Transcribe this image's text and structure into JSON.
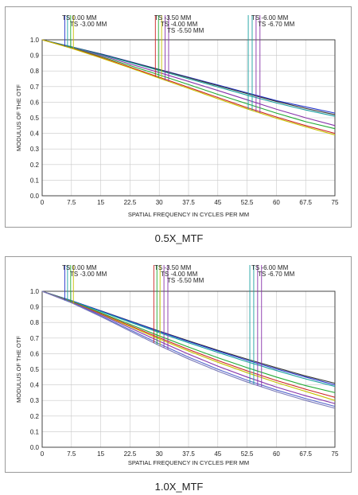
{
  "chart_data": [
    {
      "type": "line",
      "caption": "0.5X_MTF",
      "xlabel": "SPATIAL FREQUENCY IN CYCLES PER MM",
      "ylabel": "MODULUS OF THE OTF",
      "xlim": [
        0,
        75
      ],
      "ylim": [
        0,
        1
      ],
      "grid": true,
      "x_ticks": [
        "0",
        "7.5",
        "15",
        "22.5",
        "30",
        "37.5",
        "45",
        "52.5",
        "60",
        "67.5",
        "75"
      ],
      "y_ticks": [
        "0.0",
        "0.1",
        "0.2",
        "0.3",
        "0.4",
        "0.5",
        "0.6",
        "0.7",
        "0.8",
        "0.9",
        "1.0"
      ],
      "legend": [
        {
          "label": "TS 0.00 MM",
          "row": 0
        },
        {
          "label": "TS -3.00 MM",
          "row": 1
        },
        {
          "label": "TS -3.50 MM",
          "row": 0
        },
        {
          "label": "TS -4.00 MM",
          "row": 1
        },
        {
          "label": "TS -5.50 MM",
          "row": 2
        },
        {
          "label": "TS -6.00 MM",
          "row": 0
        },
        {
          "label": "TS -6.70 MM",
          "row": 1
        }
      ],
      "markers": [
        {
          "x": 5.8,
          "color": "#2233cc"
        },
        {
          "x": 6.5,
          "color": "#1aa0a0"
        },
        {
          "x": 7.3,
          "color": "#22aa33"
        },
        {
          "x": 8.0,
          "color": "#c8c000"
        },
        {
          "x": 29.0,
          "color": "#cc2222"
        },
        {
          "x": 29.8,
          "color": "#22aa33"
        },
        {
          "x": 30.6,
          "color": "#c8c000"
        },
        {
          "x": 31.5,
          "color": "#8833aa"
        },
        {
          "x": 32.4,
          "color": "#8833aa"
        },
        {
          "x": 52.8,
          "color": "#1aa0a0"
        },
        {
          "x": 53.8,
          "color": "#1aa0a0"
        },
        {
          "x": 54.8,
          "color": "#8833aa"
        },
        {
          "x": 55.8,
          "color": "#8833aa"
        }
      ],
      "series": [
        {
          "color": "#2233cc",
          "x": [
            0,
            7.5,
            15,
            22.5,
            30,
            37.5,
            45,
            52.5,
            60,
            67.5,
            75
          ],
          "y": [
            1.0,
            0.955,
            0.91,
            0.86,
            0.81,
            0.76,
            0.71,
            0.66,
            0.61,
            0.57,
            0.53
          ]
        },
        {
          "color": "#333333",
          "x": [
            0,
            7.5,
            15,
            22.5,
            30,
            37.5,
            45,
            52.5,
            60,
            67.5,
            75
          ],
          "y": [
            1.0,
            0.955,
            0.908,
            0.858,
            0.808,
            0.757,
            0.706,
            0.655,
            0.605,
            0.56,
            0.52
          ]
        },
        {
          "color": "#1aa0a0",
          "x": [
            0,
            7.5,
            15,
            22.5,
            30,
            37.5,
            45,
            52.5,
            60,
            67.5,
            75
          ],
          "y": [
            1.0,
            0.955,
            0.905,
            0.855,
            0.803,
            0.75,
            0.698,
            0.645,
            0.595,
            0.55,
            0.51
          ]
        },
        {
          "color": "#8833aa",
          "x": [
            0,
            7.5,
            15,
            22.5,
            30,
            37.5,
            45,
            52.5,
            60,
            67.5,
            75
          ],
          "y": [
            1.0,
            0.952,
            0.9,
            0.845,
            0.79,
            0.733,
            0.675,
            0.615,
            0.555,
            0.5,
            0.45
          ]
        },
        {
          "color": "#22aa33",
          "x": [
            0,
            7.5,
            15,
            22.5,
            30,
            37.5,
            45,
            52.5,
            60,
            67.5,
            75
          ],
          "y": [
            1.0,
            0.95,
            0.893,
            0.835,
            0.775,
            0.713,
            0.65,
            0.59,
            0.53,
            0.475,
            0.43
          ]
        },
        {
          "color": "#cc2222",
          "x": [
            0,
            7.5,
            15,
            22.5,
            30,
            37.5,
            45,
            52.5,
            60,
            67.5,
            75
          ],
          "y": [
            1.0,
            0.947,
            0.888,
            0.825,
            0.76,
            0.695,
            0.63,
            0.565,
            0.505,
            0.45,
            0.4
          ]
        },
        {
          "color": "#c8c000",
          "x": [
            0,
            7.5,
            15,
            22.5,
            30,
            37.5,
            45,
            52.5,
            60,
            67.5,
            75
          ],
          "y": [
            1.0,
            0.945,
            0.884,
            0.82,
            0.754,
            0.688,
            0.622,
            0.557,
            0.497,
            0.442,
            0.39
          ]
        }
      ]
    },
    {
      "type": "line",
      "caption": "1.0X_MTF",
      "xlabel": "SPATIAL FREQUENCY IN CYCLES PER MM",
      "ylabel": "MODULUS OF THE OTF",
      "xlim": [
        0,
        75
      ],
      "ylim": [
        0,
        1
      ],
      "grid": true,
      "x_ticks": [
        "0",
        "7.5",
        "15",
        "22.5",
        "30",
        "37.5",
        "45",
        "52.5",
        "60",
        "67.5",
        "75"
      ],
      "y_ticks": [
        "0.0",
        "0.1",
        "0.2",
        "0.3",
        "0.4",
        "0.5",
        "0.6",
        "0.7",
        "0.8",
        "0.9",
        "1.0"
      ],
      "legend": [
        {
          "label": "TS 0.00 MM",
          "row": 0
        },
        {
          "label": "TS -3.00 MM",
          "row": 1
        },
        {
          "label": "TS -3.50 MM",
          "row": 0
        },
        {
          "label": "TS -4.00 MM",
          "row": 1
        },
        {
          "label": "TS -5.50 MM",
          "row": 2
        },
        {
          "label": "TS -6.00 MM",
          "row": 0
        },
        {
          "label": "TS -6.70 MM",
          "row": 1
        }
      ],
      "markers": [
        {
          "x": 5.8,
          "color": "#2233cc"
        },
        {
          "x": 6.5,
          "color": "#1aa0a0"
        },
        {
          "x": 7.3,
          "color": "#22aa33"
        },
        {
          "x": 8.0,
          "color": "#c8c000"
        },
        {
          "x": 28.6,
          "color": "#cc2222"
        },
        {
          "x": 29.4,
          "color": "#22aa33"
        },
        {
          "x": 30.2,
          "color": "#c8c000"
        },
        {
          "x": 31.2,
          "color": "#8833aa"
        },
        {
          "x": 32.2,
          "color": "#8833aa"
        },
        {
          "x": 53.2,
          "color": "#1aa0a0"
        },
        {
          "x": 54.2,
          "color": "#1aa0a0"
        },
        {
          "x": 55.2,
          "color": "#8833aa"
        },
        {
          "x": 56.2,
          "color": "#8833aa"
        }
      ],
      "series": [
        {
          "color": "#333333",
          "x": [
            0,
            7.5,
            15,
            22.5,
            30,
            37.5,
            45,
            52.5,
            60,
            67.5,
            75
          ],
          "y": [
            1.0,
            0.94,
            0.875,
            0.81,
            0.745,
            0.682,
            0.622,
            0.565,
            0.51,
            0.457,
            0.41
          ]
        },
        {
          "color": "#2233cc",
          "x": [
            0,
            7.5,
            15,
            22.5,
            30,
            37.5,
            45,
            52.5,
            60,
            67.5,
            75
          ],
          "y": [
            1.0,
            0.94,
            0.874,
            0.808,
            0.742,
            0.678,
            0.617,
            0.558,
            0.502,
            0.45,
            0.4
          ]
        },
        {
          "color": "#1aa0a0",
          "x": [
            0,
            7.5,
            15,
            22.5,
            30,
            37.5,
            45,
            52.5,
            60,
            67.5,
            75
          ],
          "y": [
            1.0,
            0.938,
            0.87,
            0.802,
            0.735,
            0.67,
            0.608,
            0.548,
            0.492,
            0.438,
            0.39
          ]
        },
        {
          "color": "#22aa33",
          "x": [
            0,
            7.5,
            15,
            22.5,
            30,
            37.5,
            45,
            52.5,
            60,
            67.5,
            75
          ],
          "y": [
            1.0,
            0.935,
            0.862,
            0.788,
            0.714,
            0.642,
            0.574,
            0.51,
            0.45,
            0.395,
            0.35
          ]
        },
        {
          "color": "#cc2222",
          "x": [
            0,
            7.5,
            15,
            22.5,
            30,
            37.5,
            45,
            52.5,
            60,
            67.5,
            75
          ],
          "y": [
            1.0,
            0.933,
            0.857,
            0.78,
            0.702,
            0.627,
            0.556,
            0.49,
            0.428,
            0.372,
            0.32
          ]
        },
        {
          "color": "#c8c000",
          "x": [
            0,
            7.5,
            15,
            22.5,
            30,
            37.5,
            45,
            52.5,
            60,
            67.5,
            75
          ],
          "y": [
            1.0,
            0.931,
            0.853,
            0.774,
            0.694,
            0.617,
            0.545,
            0.478,
            0.415,
            0.358,
            0.3
          ]
        },
        {
          "color": "#8833aa",
          "x": [
            0,
            7.5,
            15,
            22.5,
            30,
            37.5,
            45,
            52.5,
            60,
            67.5,
            75
          ],
          "y": [
            1.0,
            0.93,
            0.85,
            0.765,
            0.68,
            0.597,
            0.52,
            0.45,
            0.386,
            0.33,
            0.28
          ]
        },
        {
          "color": "#5566cc",
          "x": [
            0,
            7.5,
            15,
            22.5,
            30,
            37.5,
            45,
            52.5,
            60,
            67.5,
            75
          ],
          "y": [
            1.0,
            0.928,
            0.843,
            0.753,
            0.663,
            0.578,
            0.5,
            0.43,
            0.367,
            0.312,
            0.262
          ]
        },
        {
          "color": "#7a7ab8",
          "x": [
            0,
            7.5,
            15,
            22.5,
            30,
            37.5,
            45,
            52.5,
            60,
            67.5,
            75
          ],
          "y": [
            1.0,
            0.926,
            0.838,
            0.745,
            0.652,
            0.566,
            0.488,
            0.418,
            0.356,
            0.3,
            0.25
          ]
        }
      ]
    }
  ]
}
